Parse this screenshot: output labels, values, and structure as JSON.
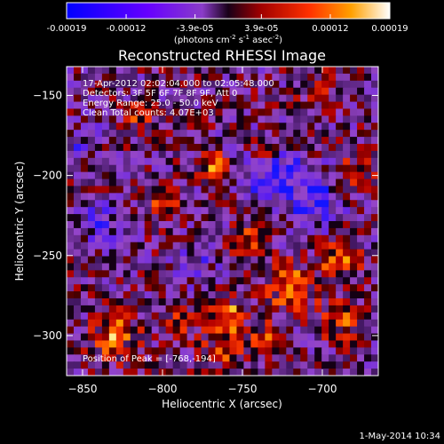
{
  "chart_data": {
    "type": "heatmap",
    "title": "Reconstructed RHESSI Image",
    "xlabel": "Heliocentric X (arcsec)",
    "ylabel": "Heliocentric Y (arcsec)",
    "xlim": [
      -860,
      -665
    ],
    "ylim": [
      -325,
      -132
    ],
    "x_ticks": [
      -850,
      -800,
      -750,
      -700
    ],
    "y_ticks": [
      -300,
      -250,
      -200,
      -150
    ],
    "colorbar": {
      "ticks": [
        "-0.00019",
        "-0.00012",
        "-3.9e-05",
        "3.9e-05",
        "0.00012",
        "0.00019"
      ],
      "range": [
        -0.00019,
        0.00019
      ],
      "unit_main": "(photons cm",
      "unit_exp1": "-2",
      "unit_mid": " s",
      "unit_exp2": "-1",
      "unit_mid2": " asec",
      "unit_exp3": "-2",
      "unit_end": ")"
    },
    "annotations": {
      "time": "17-Apr-2012 02:02:04.000 to 02:05:48.000",
      "detectors": "Detectors: 3F 5F 6F 7F 8F 9F, Att 0",
      "energy": "Energy Range: 25.0 - 50.0 keV",
      "clean": "Clean     Total counts: 4.07E+03",
      "peak": "Position of Peak = [-768,-194]"
    },
    "date_stamp": "1-May-2014 10:34",
    "peak": {
      "x": -768,
      "y": -194
    },
    "grid_size": [
      44,
      44
    ]
  }
}
